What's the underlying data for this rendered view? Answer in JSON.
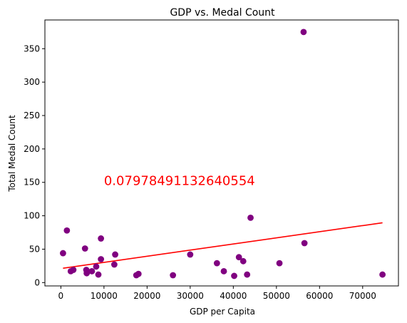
{
  "chart_data": {
    "type": "scatter",
    "title": "GDP vs. Medal Count",
    "xlabel": "GDP per Capita",
    "ylabel": "Total Medal Count",
    "xlim": [
      -3700,
      78300
    ],
    "ylim": [
      -5,
      393
    ],
    "x_ticks": [
      0,
      10000,
      20000,
      30000,
      40000,
      50000,
      60000,
      70000
    ],
    "y_ticks": [
      0,
      50,
      100,
      150,
      200,
      250,
      300,
      350
    ],
    "grid": false,
    "point_color": "#800080",
    "line_color": "#ff0000",
    "annotation": {
      "text": "0.07978491132640554",
      "x": 10000,
      "y": 150,
      "color": "#ff0000"
    },
    "regression_line": {
      "x": [
        500,
        74600
      ],
      "y": [
        21.5,
        89.5
      ]
    },
    "points": [
      {
        "x": 500,
        "y": 44
      },
      {
        "x": 1400,
        "y": 78
      },
      {
        "x": 2300,
        "y": 17
      },
      {
        "x": 2900,
        "y": 19
      },
      {
        "x": 5600,
        "y": 51
      },
      {
        "x": 5900,
        "y": 19
      },
      {
        "x": 6000,
        "y": 14
      },
      {
        "x": 7200,
        "y": 17
      },
      {
        "x": 8200,
        "y": 24
      },
      {
        "x": 8700,
        "y": 12
      },
      {
        "x": 9300,
        "y": 66
      },
      {
        "x": 9300,
        "y": 35
      },
      {
        "x": 12400,
        "y": 27
      },
      {
        "x": 12600,
        "y": 42
      },
      {
        "x": 17500,
        "y": 11
      },
      {
        "x": 18000,
        "y": 13
      },
      {
        "x": 26000,
        "y": 11
      },
      {
        "x": 30000,
        "y": 42
      },
      {
        "x": 36200,
        "y": 29
      },
      {
        "x": 37800,
        "y": 17
      },
      {
        "x": 40200,
        "y": 10
      },
      {
        "x": 41300,
        "y": 38
      },
      {
        "x": 42300,
        "y": 32
      },
      {
        "x": 43200,
        "y": 12
      },
      {
        "x": 44000,
        "y": 97
      },
      {
        "x": 50700,
        "y": 29
      },
      {
        "x": 56300,
        "y": 375
      },
      {
        "x": 56500,
        "y": 59
      },
      {
        "x": 74600,
        "y": 12
      }
    ]
  }
}
